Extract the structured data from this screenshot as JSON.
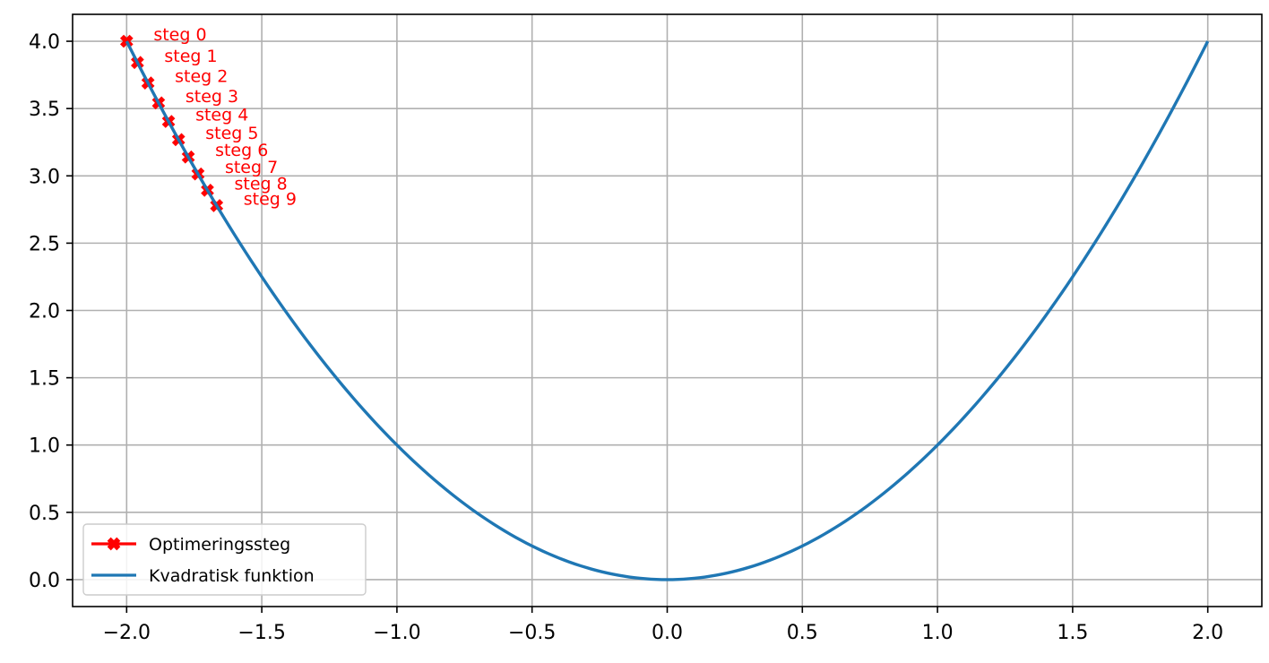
{
  "chart_data": {
    "type": "line",
    "title": "",
    "xlabel": "",
    "ylabel": "",
    "xlim": [
      -2.2,
      2.2
    ],
    "ylim": [
      -0.2,
      4.2
    ],
    "x_ticks": [
      -2.0,
      -1.5,
      -1.0,
      -0.5,
      0.0,
      0.5,
      1.0,
      1.5,
      2.0
    ],
    "x_tick_labels": [
      "−2.0",
      "−1.5",
      "−1.0",
      "−0.5",
      "0.0",
      "0.5",
      "1.0",
      "1.5",
      "2.0"
    ],
    "y_ticks": [
      0.0,
      0.5,
      1.0,
      1.5,
      2.0,
      2.5,
      3.0,
      3.5,
      4.0
    ],
    "y_tick_labels": [
      "0.0",
      "0.5",
      "1.0",
      "1.5",
      "2.0",
      "2.5",
      "3.0",
      "3.5",
      "4.0"
    ],
    "grid": true,
    "legend_position": "lower-left",
    "series": [
      {
        "name": "Optimeringssteg",
        "kind": "line-with-markers",
        "marker": "X",
        "color": "#ff0000",
        "x": [
          -2.0,
          -1.96,
          -1.921,
          -1.882,
          -1.845,
          -1.808,
          -1.772,
          -1.736,
          -1.701,
          -1.667
        ],
        "y": [
          4.0,
          3.842,
          3.69,
          3.542,
          3.404,
          3.269,
          3.14,
          3.014,
          2.893,
          2.779
        ],
        "point_labels": [
          "steg 0",
          "steg 1",
          "steg 2",
          "steg 3",
          "steg 4",
          "steg 5",
          "steg 6",
          "steg 7",
          "steg 8",
          "steg 9"
        ]
      },
      {
        "name": "Kvadratisk funktion",
        "kind": "line",
        "function": "y = x^2",
        "color": "#1f77b4",
        "x_range": [
          -2.0,
          2.0
        ],
        "sample_count": 201
      }
    ]
  }
}
